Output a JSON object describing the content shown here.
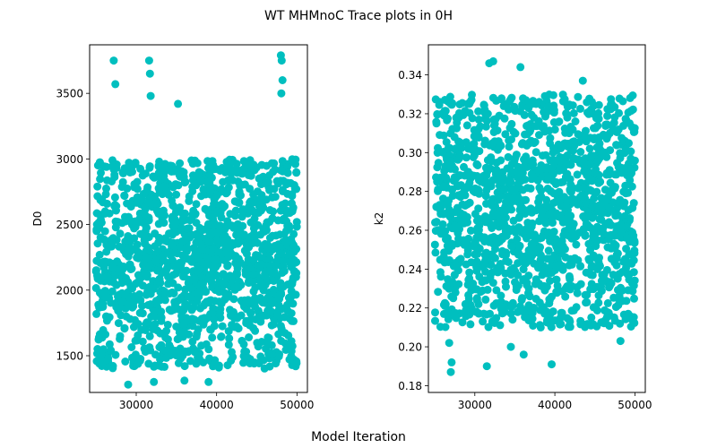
{
  "figure": {
    "title": "WT MHMnoC Trace plots in 0H",
    "xlabel": "Model Iteration"
  },
  "colors": {
    "series": "#00bfbf",
    "axis": "#000000",
    "background": "#ffffff"
  },
  "chart_data": [
    {
      "type": "scatter",
      "title": "",
      "xlabel": "",
      "ylabel": "D0",
      "xlim": [
        24200,
        51300
      ],
      "ylim": [
        1220,
        3870
      ],
      "xticks": [
        30000,
        40000,
        50000
      ],
      "xtick_labels": [
        "30000",
        "40000",
        "50000"
      ],
      "yticks": [
        1500,
        2000,
        2500,
        3000,
        3500
      ],
      "ytick_labels": [
        "1500",
        "2000",
        "2500",
        "3000",
        "3500"
      ],
      "grid": false,
      "series": [
        {
          "x_range": [
            25000,
            50000
          ],
          "bulk_range": [
            1700,
            2700
          ],
          "typical_spread": [
            1400,
            3000
          ],
          "outliers": [
            {
              "x": 27200,
              "y": 3750
            },
            {
              "x": 31600,
              "y": 3750
            },
            {
              "x": 31700,
              "y": 3650
            },
            {
              "x": 27400,
              "y": 3570
            },
            {
              "x": 31800,
              "y": 3480
            },
            {
              "x": 35200,
              "y": 3420
            },
            {
              "x": 48000,
              "y": 3790
            },
            {
              "x": 48100,
              "y": 3750
            },
            {
              "x": 48200,
              "y": 3600
            },
            {
              "x": 48050,
              "y": 3500
            },
            {
              "x": 29000,
              "y": 1280
            },
            {
              "x": 32200,
              "y": 1300
            },
            {
              "x": 36000,
              "y": 1310
            },
            {
              "x": 39000,
              "y": 1300
            },
            {
              "x": 49800,
              "y": 2960
            }
          ]
        }
      ]
    },
    {
      "type": "scatter",
      "title": "",
      "xlabel": "",
      "ylabel": "k2",
      "xlim": [
        24200,
        51300
      ],
      "ylim": [
        0.1765,
        0.3555
      ],
      "xticks": [
        30000,
        40000,
        50000
      ],
      "xtick_labels": [
        "30000",
        "40000",
        "50000"
      ],
      "yticks": [
        0.18,
        0.2,
        0.22,
        0.24,
        0.26,
        0.28,
        0.3,
        0.32,
        0.34
      ],
      "ytick_labels": [
        "0.18",
        "0.20",
        "0.22",
        "0.24",
        "0.26",
        "0.28",
        "0.30",
        "0.32",
        "0.34"
      ],
      "grid": false,
      "series": [
        {
          "x_range": [
            25000,
            50000
          ],
          "bulk_range": [
            0.23,
            0.31
          ],
          "typical_spread": [
            0.21,
            0.33
          ],
          "outliers": [
            {
              "x": 31800,
              "y": 0.346
            },
            {
              "x": 32300,
              "y": 0.347
            },
            {
              "x": 35700,
              "y": 0.344
            },
            {
              "x": 43500,
              "y": 0.337
            },
            {
              "x": 27000,
              "y": 0.187
            },
            {
              "x": 27100,
              "y": 0.192
            },
            {
              "x": 31500,
              "y": 0.19
            },
            {
              "x": 39600,
              "y": 0.191
            },
            {
              "x": 26800,
              "y": 0.202
            },
            {
              "x": 34500,
              "y": 0.2
            },
            {
              "x": 36100,
              "y": 0.196
            },
            {
              "x": 48200,
              "y": 0.203
            }
          ]
        }
      ]
    }
  ]
}
